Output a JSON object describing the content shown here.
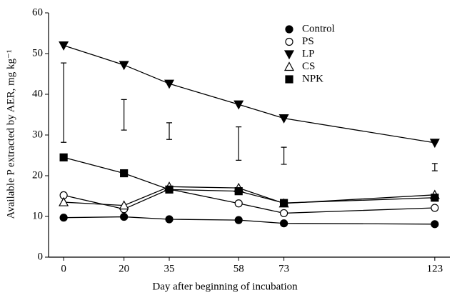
{
  "chart_data": {
    "type": "line",
    "x_label": "Day after beginning of incubation",
    "y_label": "Available P extracted by AER, mg kg⁻¹",
    "x": [
      0,
      20,
      35,
      58,
      73,
      123
    ],
    "xlim": [
      -5,
      128
    ],
    "xticks": [
      0,
      20,
      35,
      58,
      73,
      123
    ],
    "ylim": [
      0,
      60
    ],
    "yticks": [
      0,
      10,
      20,
      30,
      40,
      50,
      60
    ],
    "legend": "top-right",
    "series": [
      {
        "name": "Control",
        "color": "#000000",
        "marker": "circle-filled",
        "values": [
          9.7,
          9.9,
          9.3,
          9.1,
          8.3,
          8.1
        ]
      },
      {
        "name": "PS",
        "color": "#000000",
        "marker": "circle-open",
        "values": [
          15.2,
          11.8,
          16.7,
          13.2,
          10.8,
          12.1
        ]
      },
      {
        "name": "LP",
        "color": "#000000",
        "marker": "triangle-down-filled",
        "values": [
          52,
          47.2,
          42.6,
          37.5,
          34.1,
          28.1
        ]
      },
      {
        "name": "CS",
        "color": "#000000",
        "marker": "triangle-up-open",
        "values": [
          13.5,
          12.7,
          17.3,
          17,
          13.2,
          15.3
        ]
      },
      {
        "name": "NPK",
        "color": "#000000",
        "marker": "square-filled",
        "values": [
          24.5,
          20.6,
          16.6,
          16.2,
          13.3,
          14.6
        ]
      }
    ],
    "error_bars": {
      "x": [
        0,
        20,
        35,
        58,
        73,
        123
      ],
      "low": [
        28.2,
        31.2,
        28.9,
        23.8,
        22.8,
        21.2
      ],
      "high": [
        47.7,
        38.7,
        33,
        32,
        27,
        23
      ]
    }
  }
}
